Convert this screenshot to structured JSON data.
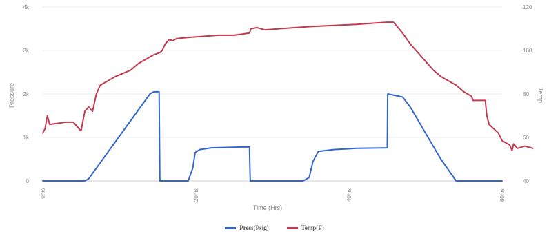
{
  "chart_data": {
    "type": "line",
    "xlabel": "Time (Hrs)",
    "xlim": [
      0,
      60
    ],
    "x_ticks": [
      {
        "v": 0,
        "label": "0hrs"
      },
      {
        "v": 20,
        "label": "20hrs"
      },
      {
        "v": 40,
        "label": "40hrs"
      },
      {
        "v": 60,
        "label": "60hrs"
      }
    ],
    "left_axis": {
      "label": "Pressure",
      "lim": [
        0,
        4000
      ],
      "ticks": [
        {
          "v": 0,
          "label": "0"
        },
        {
          "v": 1000,
          "label": "1k"
        },
        {
          "v": 2000,
          "label": "2k"
        },
        {
          "v": 3000,
          "label": "3k"
        },
        {
          "v": 4000,
          "label": "4k"
        }
      ]
    },
    "right_axis": {
      "label": "Temp",
      "lim": [
        40,
        120
      ],
      "ticks": [
        {
          "v": 40,
          "label": "40"
        },
        {
          "v": 60,
          "label": "60"
        },
        {
          "v": 80,
          "label": "80"
        },
        {
          "v": 100,
          "label": "100"
        },
        {
          "v": 120,
          "label": "120"
        }
      ]
    },
    "grid": true,
    "legend_position": "bottom",
    "series": [
      {
        "name": "Press(Psig)",
        "axis": "left",
        "color": "#3366cc",
        "points": [
          [
            0,
            0
          ],
          [
            5.5,
            0
          ],
          [
            6,
            50
          ],
          [
            14,
            2000
          ],
          [
            14.5,
            2050
          ],
          [
            15.2,
            2050
          ],
          [
            15.3,
            0
          ],
          [
            19,
            0
          ],
          [
            19.6,
            300
          ],
          [
            19.9,
            650
          ],
          [
            20.5,
            720
          ],
          [
            22,
            760
          ],
          [
            26,
            780
          ],
          [
            27,
            780
          ],
          [
            27.1,
            0
          ],
          [
            34,
            0
          ],
          [
            34.8,
            80
          ],
          [
            35.3,
            450
          ],
          [
            36,
            680
          ],
          [
            38,
            720
          ],
          [
            41,
            750
          ],
          [
            45,
            760
          ],
          [
            45.05,
            2000
          ],
          [
            47,
            1930
          ],
          [
            48,
            1700
          ],
          [
            49,
            1400
          ],
          [
            50,
            1100
          ],
          [
            52,
            500
          ],
          [
            54,
            0
          ],
          [
            60,
            0
          ]
        ]
      },
      {
        "name": "Temp(F)",
        "axis": "right",
        "color": "#c33a50",
        "points": [
          [
            0,
            62
          ],
          [
            0.3,
            64
          ],
          [
            0.6,
            70
          ],
          [
            0.9,
            66
          ],
          [
            2,
            66.5
          ],
          [
            3,
            67
          ],
          [
            4,
            67
          ],
          [
            4.5,
            65
          ],
          [
            5,
            63
          ],
          [
            5.5,
            72
          ],
          [
            6,
            74
          ],
          [
            6.5,
            72
          ],
          [
            7,
            80
          ],
          [
            7.5,
            84
          ],
          [
            8.5,
            86
          ],
          [
            9.5,
            88
          ],
          [
            10.5,
            89.5
          ],
          [
            11.5,
            91
          ],
          [
            12.5,
            94
          ],
          [
            13.5,
            96
          ],
          [
            14.5,
            98
          ],
          [
            15.3,
            99
          ],
          [
            15.6,
            100
          ],
          [
            16,
            103
          ],
          [
            16.5,
            105
          ],
          [
            17,
            104.5
          ],
          [
            17.5,
            105.5
          ],
          [
            19,
            106
          ],
          [
            21,
            106.5
          ],
          [
            23,
            107
          ],
          [
            25,
            107
          ],
          [
            26,
            107.5
          ],
          [
            27,
            108
          ],
          [
            27.2,
            110
          ],
          [
            28,
            110.5
          ],
          [
            29,
            109.5
          ],
          [
            31,
            110
          ],
          [
            33,
            110.5
          ],
          [
            35,
            111
          ],
          [
            38,
            111.5
          ],
          [
            41,
            112
          ],
          [
            43,
            112.5
          ],
          [
            45,
            113
          ],
          [
            45.8,
            113
          ],
          [
            46.3,
            111
          ],
          [
            47,
            108
          ],
          [
            48,
            103
          ],
          [
            49,
            99
          ],
          [
            50,
            95
          ],
          [
            51,
            91
          ],
          [
            52,
            88
          ],
          [
            53,
            86
          ],
          [
            54,
            84
          ],
          [
            55,
            81
          ],
          [
            56,
            79
          ],
          [
            56.2,
            77
          ],
          [
            57.8,
            77
          ],
          [
            58,
            70
          ],
          [
            58.3,
            66
          ],
          [
            59.5,
            62
          ],
          [
            60,
            58.5
          ],
          [
            61,
            56.5
          ],
          [
            61.3,
            54
          ],
          [
            61.5,
            57
          ],
          [
            62,
            55
          ],
          [
            63,
            56
          ],
          [
            64,
            55
          ]
        ]
      }
    ]
  }
}
